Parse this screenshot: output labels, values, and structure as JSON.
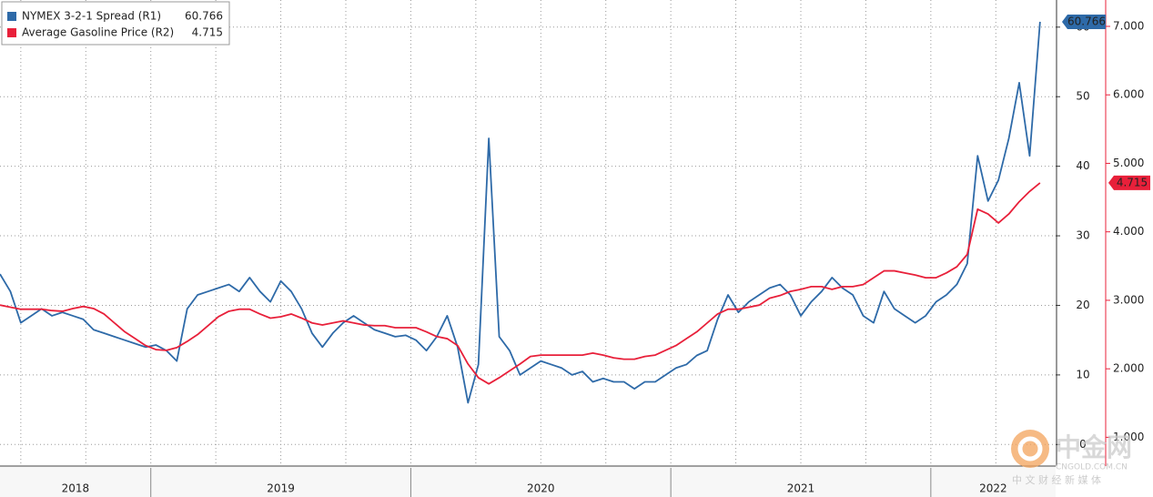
{
  "chart_data": {
    "type": "line",
    "categories": [
      "2018",
      "2019",
      "2020",
      "2021",
      "2022"
    ],
    "x": [
      2018.42,
      2018.46,
      2018.5,
      2018.54,
      2018.58,
      2018.62,
      2018.66,
      2018.7,
      2018.74,
      2018.78,
      2018.82,
      2018.86,
      2018.9,
      2018.94,
      2018.98,
      2019.02,
      2019.06,
      2019.1,
      2019.14,
      2019.18,
      2019.22,
      2019.26,
      2019.3,
      2019.34,
      2019.38,
      2019.42,
      2019.46,
      2019.5,
      2019.54,
      2019.58,
      2019.62,
      2019.66,
      2019.7,
      2019.74,
      2019.78,
      2019.82,
      2019.86,
      2019.9,
      2019.94,
      2019.98,
      2020.02,
      2020.06,
      2020.1,
      2020.14,
      2020.18,
      2020.22,
      2020.26,
      2020.3,
      2020.34,
      2020.38,
      2020.42,
      2020.46,
      2020.5,
      2020.54,
      2020.58,
      2020.62,
      2020.66,
      2020.7,
      2020.74,
      2020.78,
      2020.82,
      2020.86,
      2020.9,
      2020.94,
      2020.98,
      2021.02,
      2021.06,
      2021.1,
      2021.14,
      2021.18,
      2021.22,
      2021.26,
      2021.3,
      2021.34,
      2021.38,
      2021.42,
      2021.46,
      2021.5,
      2021.54,
      2021.58,
      2021.62,
      2021.66,
      2021.7,
      2021.74,
      2021.78,
      2021.82,
      2021.86,
      2021.9,
      2021.94,
      2021.98,
      2022.02,
      2022.06,
      2022.1,
      2022.14,
      2022.18,
      2022.22,
      2022.26,
      2022.3,
      2022.34,
      2022.38,
      2022.42
    ],
    "series": [
      {
        "name": "NYMEX 3-2-1 Spread (R1)",
        "color": "#2e6aa8",
        "axis": "y",
        "values": [
          24.5,
          22,
          17.5,
          18.5,
          19.5,
          18.5,
          19,
          18.5,
          18,
          16.5,
          16,
          15.5,
          15,
          14.5,
          14,
          14.3,
          13.5,
          12,
          19.5,
          21.5,
          22,
          22.5,
          23,
          22,
          24,
          22,
          20.5,
          23.5,
          22,
          19.5,
          16,
          14,
          16,
          17.5,
          18.5,
          17.5,
          16.5,
          16,
          15.5,
          15.7,
          15,
          13.5,
          15.5,
          18.5,
          14,
          6,
          11.5,
          44,
          15.5,
          13.5,
          10,
          11,
          12,
          11.5,
          11,
          10,
          10.5,
          9,
          9.5,
          9,
          9,
          8,
          9,
          9,
          10,
          11,
          11.5,
          12.8,
          13.5,
          18,
          21.5,
          19,
          20.5,
          21.5,
          22.5,
          23,
          21.5,
          18.5,
          20.5,
          22,
          24,
          22.5,
          21.5,
          18.5,
          17.5,
          22,
          19.5,
          18.5,
          17.5,
          18.5,
          20.5,
          21.5,
          23,
          26,
          41.5,
          35,
          38,
          44,
          52,
          41.5,
          60.766
        ]
      },
      {
        "name": "Average Gasoline Price (R2)",
        "color": "#e8203a",
        "axis": "y2",
        "values": [
          2.93,
          2.9,
          2.87,
          2.87,
          2.87,
          2.85,
          2.84,
          2.88,
          2.91,
          2.88,
          2.8,
          2.67,
          2.54,
          2.44,
          2.34,
          2.28,
          2.27,
          2.31,
          2.4,
          2.5,
          2.63,
          2.76,
          2.84,
          2.87,
          2.87,
          2.8,
          2.74,
          2.76,
          2.8,
          2.74,
          2.67,
          2.64,
          2.67,
          2.7,
          2.67,
          2.64,
          2.63,
          2.63,
          2.6,
          2.6,
          2.6,
          2.54,
          2.47,
          2.44,
          2.34,
          2.07,
          1.87,
          1.78,
          1.87,
          1.97,
          2.07,
          2.18,
          2.2,
          2.2,
          2.2,
          2.2,
          2.2,
          2.23,
          2.2,
          2.16,
          2.14,
          2.14,
          2.18,
          2.2,
          2.27,
          2.34,
          2.44,
          2.54,
          2.67,
          2.8,
          2.87,
          2.87,
          2.9,
          2.93,
          3.03,
          3.07,
          3.13,
          3.16,
          3.2,
          3.2,
          3.16,
          3.2,
          3.2,
          3.23,
          3.33,
          3.43,
          3.43,
          3.4,
          3.37,
          3.33,
          3.33,
          3.4,
          3.49,
          3.67,
          4.33,
          4.26,
          4.13,
          4.26,
          4.44,
          4.59,
          4.715
        ]
      }
    ],
    "xlim": [
      2018.42,
      2022.48
    ],
    "xticks": [
      2019,
      2020,
      2021,
      2022
    ],
    "ylim": [
      -3.1,
      63.9
    ],
    "yticks": [
      0,
      10,
      20,
      30,
      40,
      50,
      60
    ],
    "y2lim": [
      0.58,
      7.385
    ],
    "y2ticks": [
      {
        "value": 1,
        "label": "1.000"
      },
      {
        "value": 2,
        "label": "2.000"
      },
      {
        "value": 3,
        "label": "3.000"
      },
      {
        "value": 4,
        "label": "4.000"
      },
      {
        "value": 5,
        "label": "5.000"
      },
      {
        "value": 6,
        "label": "6.000"
      },
      {
        "value": 7,
        "label": "7.000"
      }
    ],
    "grid": true,
    "legend": "top-left"
  },
  "watermark": {
    "brand": "中金网",
    "site": "CNGOLD.COM.CN",
    "tagline": "中 文 财 经 新 媒 体"
  }
}
